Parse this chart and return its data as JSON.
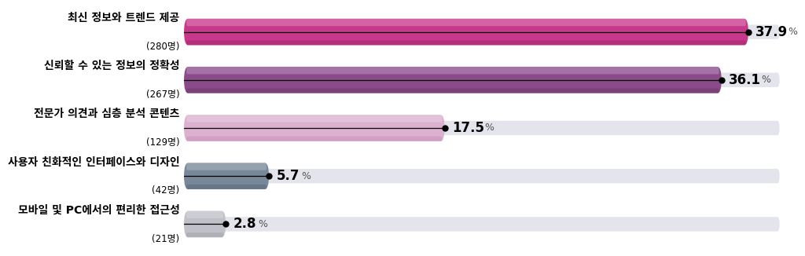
{
  "categories": [
    "최신 정보와 트렌드 제공",
    "신뢰할 수 있는 정보의 정확성",
    "전문가 의견과 심층 분석 콘텐츠",
    "사용자 친화적인 인터페이스와 디자인",
    "모바일 및 PC에서의 편리한 접근성"
  ],
  "subcounts": [
    "(280명)",
    "(267명)",
    "(129명)",
    "(42명)",
    "(21명)"
  ],
  "values": [
    37.9,
    36.1,
    17.5,
    5.7,
    2.8
  ],
  "bar_colors": [
    "#c8388a",
    "#8b4b8b",
    "#ddb0d0",
    "#778899",
    "#c0c0c8"
  ],
  "track_color": "#e4e4ec",
  "max_value": 40.0,
  "bg_color": "#ffffff",
  "label_color": "#000000",
  "pct_bold_color": "#000000",
  "pct_normal_color": "#555555"
}
